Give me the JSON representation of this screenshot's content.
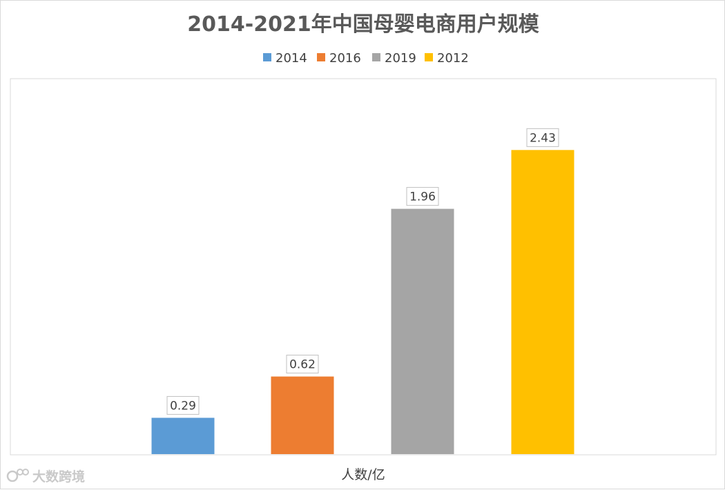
{
  "chart_data": {
    "type": "bar",
    "title": "2014-2021年中国母婴电商用户规模",
    "xlabel": "人数/亿",
    "ylabel": "",
    "ylim": [
      0,
      3.0
    ],
    "grid": false,
    "legend_position": "top",
    "categories": [
      "2014",
      "2016",
      "2019",
      "2012"
    ],
    "values": [
      0.29,
      0.62,
      1.96,
      2.43
    ],
    "value_labels": [
      "0.29",
      "0.62",
      "1.96",
      "2.43"
    ],
    "colors": [
      "#5b9bd5",
      "#ed7d31",
      "#a5a5a5",
      "#ffc000"
    ],
    "series": [
      {
        "name": "2014",
        "value": 0.29,
        "color": "#5b9bd5"
      },
      {
        "name": "2016",
        "value": 0.62,
        "color": "#ed7d31"
      },
      {
        "name": "2019",
        "value": 1.96,
        "color": "#a5a5a5"
      },
      {
        "name": "2012",
        "value": 2.43,
        "color": "#ffc000"
      }
    ]
  },
  "watermark": {
    "text": "大数跨境",
    "icon": "logo-icon"
  }
}
